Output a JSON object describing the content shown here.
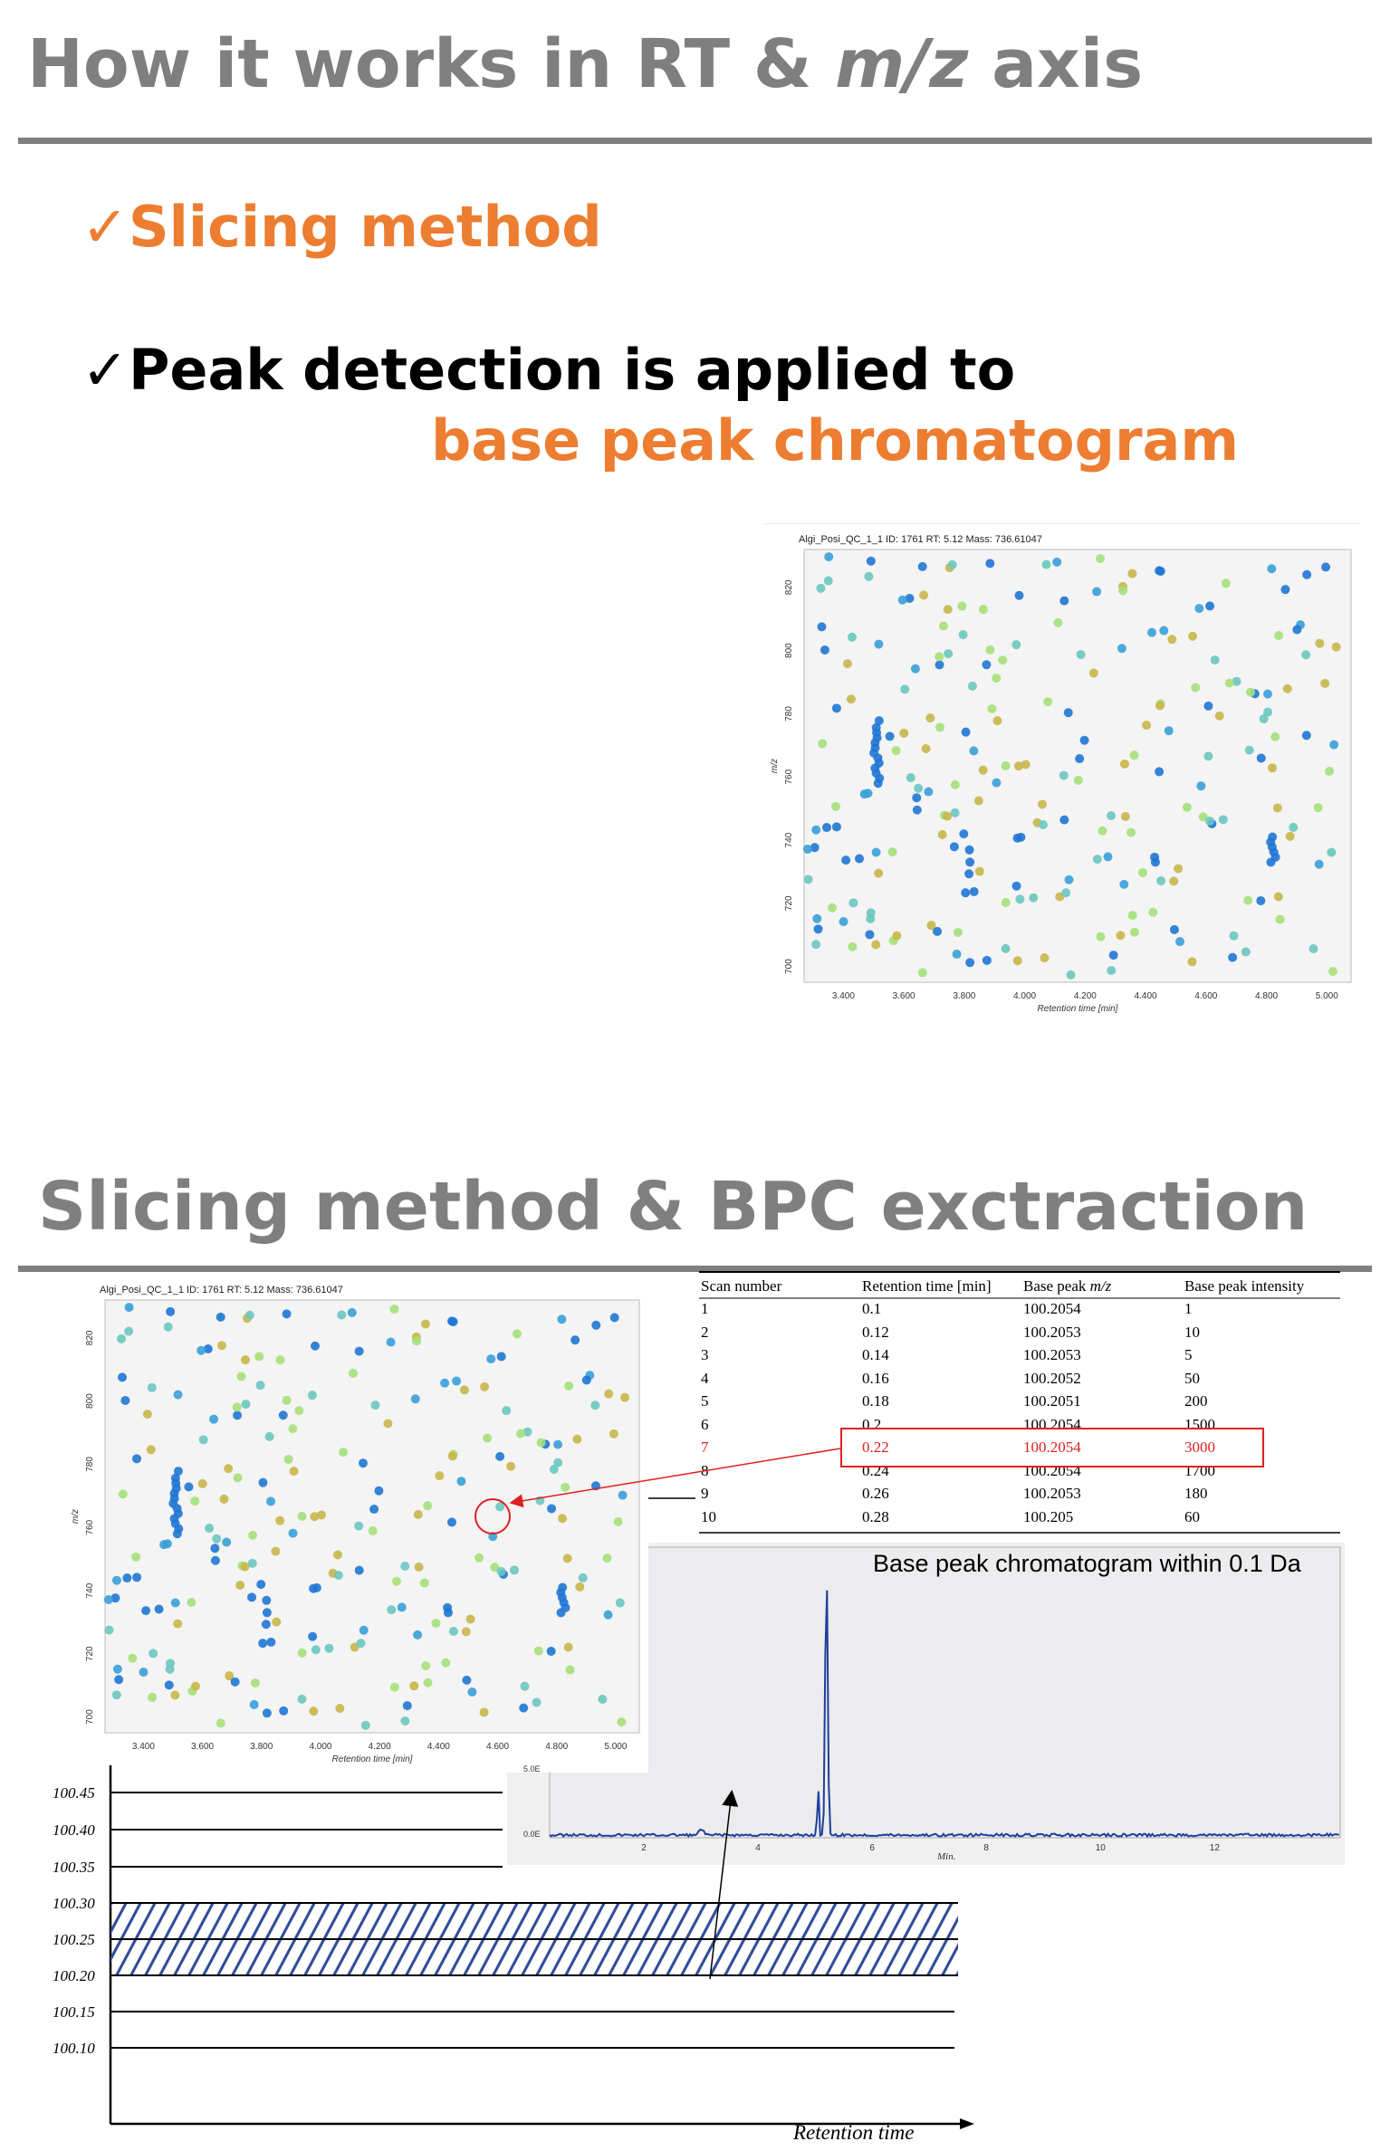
{
  "slide1": {
    "title_part1": "How it works in RT & ",
    "title_italic": "m/z",
    "title_part2": " axis",
    "bullet1": "Slicing method",
    "bullet2_line1": "Peak detection is applied to",
    "bullet2_line2": "base peak chromatogram",
    "check_glyph": "✓"
  },
  "slide2": {
    "title": "Slicing method & BPC exctraction"
  },
  "scatter": {
    "header": "Algi_Posi_QC_1_1  ID: 1761  RT: 5.12  Mass: 736.61047",
    "xlabel": "Retention time [min]",
    "ylabel": "m/z",
    "xticks": [
      "3.400",
      "3.600",
      "3.800",
      "4.000",
      "4.200",
      "4.400",
      "4.600",
      "4.800",
      "5.000"
    ],
    "yticks": [
      "700",
      "720",
      "740",
      "760",
      "780",
      "800",
      "820"
    ]
  },
  "chart_data": [
    {
      "type": "scatter",
      "title": "Algi_Posi_QC_1_1  ID: 1761  RT: 5.12  Mass: 736.61047",
      "xlabel": "Retention time [min]",
      "ylabel": "m/z",
      "xlim": [
        3.27,
        5.08
      ],
      "ylim": [
        695,
        832
      ],
      "grid": false,
      "note_colors": [
        "#1f77d4",
        "#3aa0d8",
        "#6cc7c0",
        "#a6e07a",
        "#c9b64a"
      ]
    },
    {
      "type": "line",
      "title": "Base peak chromatogram within 0.1 Da",
      "xlabel": "Min.",
      "xticks": [
        "2",
        "4",
        "6",
        "8",
        "10",
        "12"
      ],
      "yticks": [
        "0.0E",
        "5.0E"
      ],
      "peak_rt": 5.2
    },
    {
      "type": "table",
      "columns": [
        "Scan number",
        "Retention time [min]",
        "Base peak m/z",
        "Base peak intensity"
      ],
      "rows": [
        [
          "1",
          "0.1",
          "100.2054",
          "1"
        ],
        [
          "2",
          "0.12",
          "100.2053",
          "10"
        ],
        [
          "3",
          "0.14",
          "100.2053",
          "5"
        ],
        [
          "4",
          "0.16",
          "100.2052",
          "50"
        ],
        [
          "5",
          "0.18",
          "100.2051",
          "200"
        ],
        [
          "6",
          "0.2",
          "100.2054",
          "1500"
        ],
        [
          "7",
          "0.22",
          "100.2054",
          "3000"
        ],
        [
          "8",
          "0.24",
          "100.2054",
          "1700"
        ],
        [
          "9",
          "0.26",
          "100.2053",
          "180"
        ],
        [
          "10",
          "0.28",
          "100.205",
          "60"
        ]
      ],
      "highlight_row": 7
    }
  ],
  "slice_diagram": {
    "mz_labels": [
      "100.45",
      "100.40",
      "100.35",
      "100.30",
      "100.25",
      "100.20",
      "100.15",
      "100.10"
    ],
    "xaxis_label": "Retention time",
    "hatched_slices": [
      "100.30",
      "100.25"
    ]
  },
  "colors": {
    "title_gray": "#7f7f7f",
    "accent_orange": "#ed7d31",
    "highlight_red": "#e02020",
    "hatch_blue": "#2e4c96",
    "bpc_line": "#1f3f9a"
  }
}
